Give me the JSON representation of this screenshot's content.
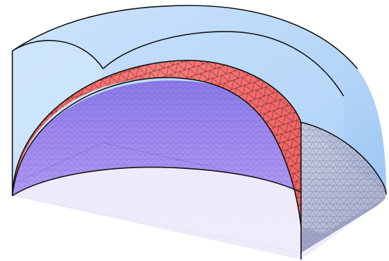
{
  "figure": {
    "kind": "3D cutaway of nested dome shells with triangulated surface mesh",
    "layers": [
      {
        "role": "outer-shell",
        "fill": "#9cc7f5"
      },
      {
        "role": "middle-shell-mesh",
        "fill": "#f4706f"
      },
      {
        "role": "inner-shell-mesh",
        "fill": "#a48cf2"
      },
      {
        "role": "cut-face-mesh",
        "fill": "#b7b6d6"
      },
      {
        "role": "floor",
        "fill": "#ececfb"
      }
    ],
    "colors": {
      "outline": "#111111",
      "mesh_line": "#3a1010"
    }
  }
}
